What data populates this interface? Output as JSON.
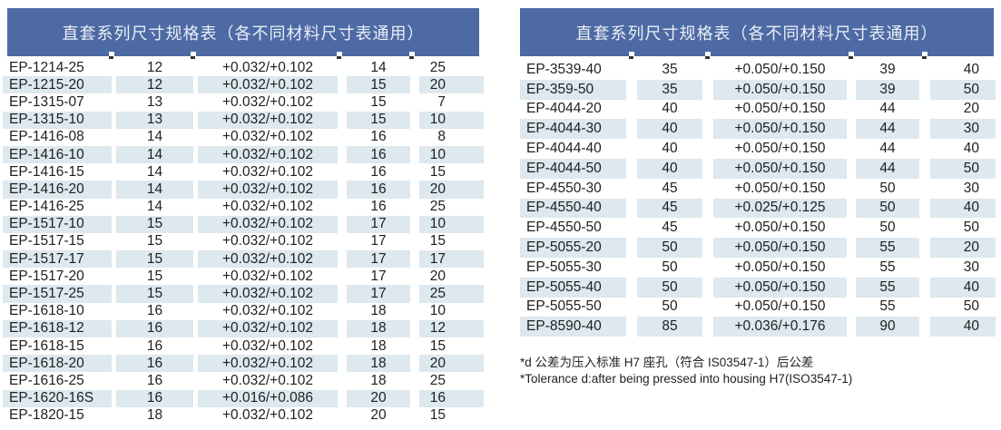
{
  "colors": {
    "header_bg": "#4d6aa4",
    "header_text": "#eaeef6",
    "row_stripe": "#dde8ef",
    "body_text": "#1f1f1f"
  },
  "tables": [
    {
      "title": "直套系列尺寸规格表（各不同材料尺寸表通用）",
      "rows": [
        [
          "EP-1214-25",
          "12",
          "+0.032/+0.102",
          "14",
          "25"
        ],
        [
          "EP-1215-20",
          "12",
          "+0.032/+0.102",
          "15",
          "20"
        ],
        [
          "EP-1315-07",
          "13",
          "+0.032/+0.102",
          "15",
          "7"
        ],
        [
          "EP-1315-10",
          "13",
          "+0.032/+0.102",
          "15",
          "10"
        ],
        [
          "EP-1416-08",
          "14",
          "+0.032/+0.102",
          "16",
          "8"
        ],
        [
          "EP-1416-10",
          "14",
          "+0.032/+0.102",
          "16",
          "10"
        ],
        [
          "EP-1416-15",
          "14",
          "+0.032/+0.102",
          "16",
          "15"
        ],
        [
          "EP-1416-20",
          "14",
          "+0.032/+0.102",
          "16",
          "20"
        ],
        [
          "EP-1416-25",
          "14",
          "+0.032/+0.102",
          "16",
          "25"
        ],
        [
          "EP-1517-10",
          "15",
          "+0.032/+0.102",
          "17",
          "10"
        ],
        [
          "EP-1517-15",
          "15",
          "+0.032/+0.102",
          "17",
          "15"
        ],
        [
          "EP-1517-17",
          "15",
          "+0.032/+0.102",
          "17",
          "17"
        ],
        [
          "EP-1517-20",
          "15",
          "+0.032/+0.102",
          "17",
          "20"
        ],
        [
          "EP-1517-25",
          "15",
          "+0.032/+0.102",
          "17",
          "25"
        ],
        [
          "EP-1618-10",
          "16",
          "+0.032/+0.102",
          "18",
          "10"
        ],
        [
          "EP-1618-12",
          "16",
          "+0.032/+0.102",
          "18",
          "12"
        ],
        [
          "EP-1618-15",
          "16",
          "+0.032/+0.102",
          "18",
          "15"
        ],
        [
          "EP-1618-20",
          "16",
          "+0.032/+0.102",
          "18",
          "20"
        ],
        [
          "EP-1616-25",
          "16",
          "+0.032/+0.102",
          "18",
          "25"
        ],
        [
          "EP-1620-16S",
          "16",
          "+0.016/+0.086",
          "20",
          "16"
        ],
        [
          "EP-1820-15",
          "18",
          "+0.032/+0.102",
          "20",
          "15"
        ]
      ]
    },
    {
      "title": "直套系列尺寸规格表（各不同材料尺寸表通用）",
      "rows": [
        [
          "EP-3539-40",
          "35",
          "+0.050/+0.150",
          "39",
          "40"
        ],
        [
          "EP-359-50",
          "35",
          "+0.050/+0.150",
          "39",
          "50"
        ],
        [
          "EP-4044-20",
          "40",
          "+0.050/+0.150",
          "44",
          "20"
        ],
        [
          "EP-4044-30",
          "40",
          "+0.050/+0.150",
          "44",
          "30"
        ],
        [
          "EP-4044-40",
          "40",
          "+0.050/+0.150",
          "44",
          "40"
        ],
        [
          "EP-4044-50",
          "40",
          "+0.050/+0.150",
          "44",
          "50"
        ],
        [
          "EP-4550-30",
          "45",
          "+0.050/+0.150",
          "50",
          "30"
        ],
        [
          "EP-4550-40",
          "45",
          "+0.025/+0.125",
          "50",
          "40"
        ],
        [
          "EP-4550-50",
          "45",
          "+0.050/+0.150",
          "50",
          "50"
        ],
        [
          "EP-5055-20",
          "50",
          "+0.050/+0.150",
          "55",
          "20"
        ],
        [
          "EP-5055-30",
          "50",
          "+0.050/+0.150",
          "55",
          "30"
        ],
        [
          "EP-5055-40",
          "50",
          "+0.050/+0.150",
          "55",
          "40"
        ],
        [
          "EP-5055-50",
          "50",
          "+0.050/+0.150",
          "55",
          "50"
        ],
        [
          "EP-8590-40",
          "85",
          "+0.036/+0.176",
          "90",
          "40"
        ]
      ],
      "footnotes": [
        "*d 公差为压入标准 H7 座孔（符合 IS03547-1）后公差",
        "*Tolerance d:after being pressed into housing H7(ISO3547-1)"
      ]
    }
  ]
}
